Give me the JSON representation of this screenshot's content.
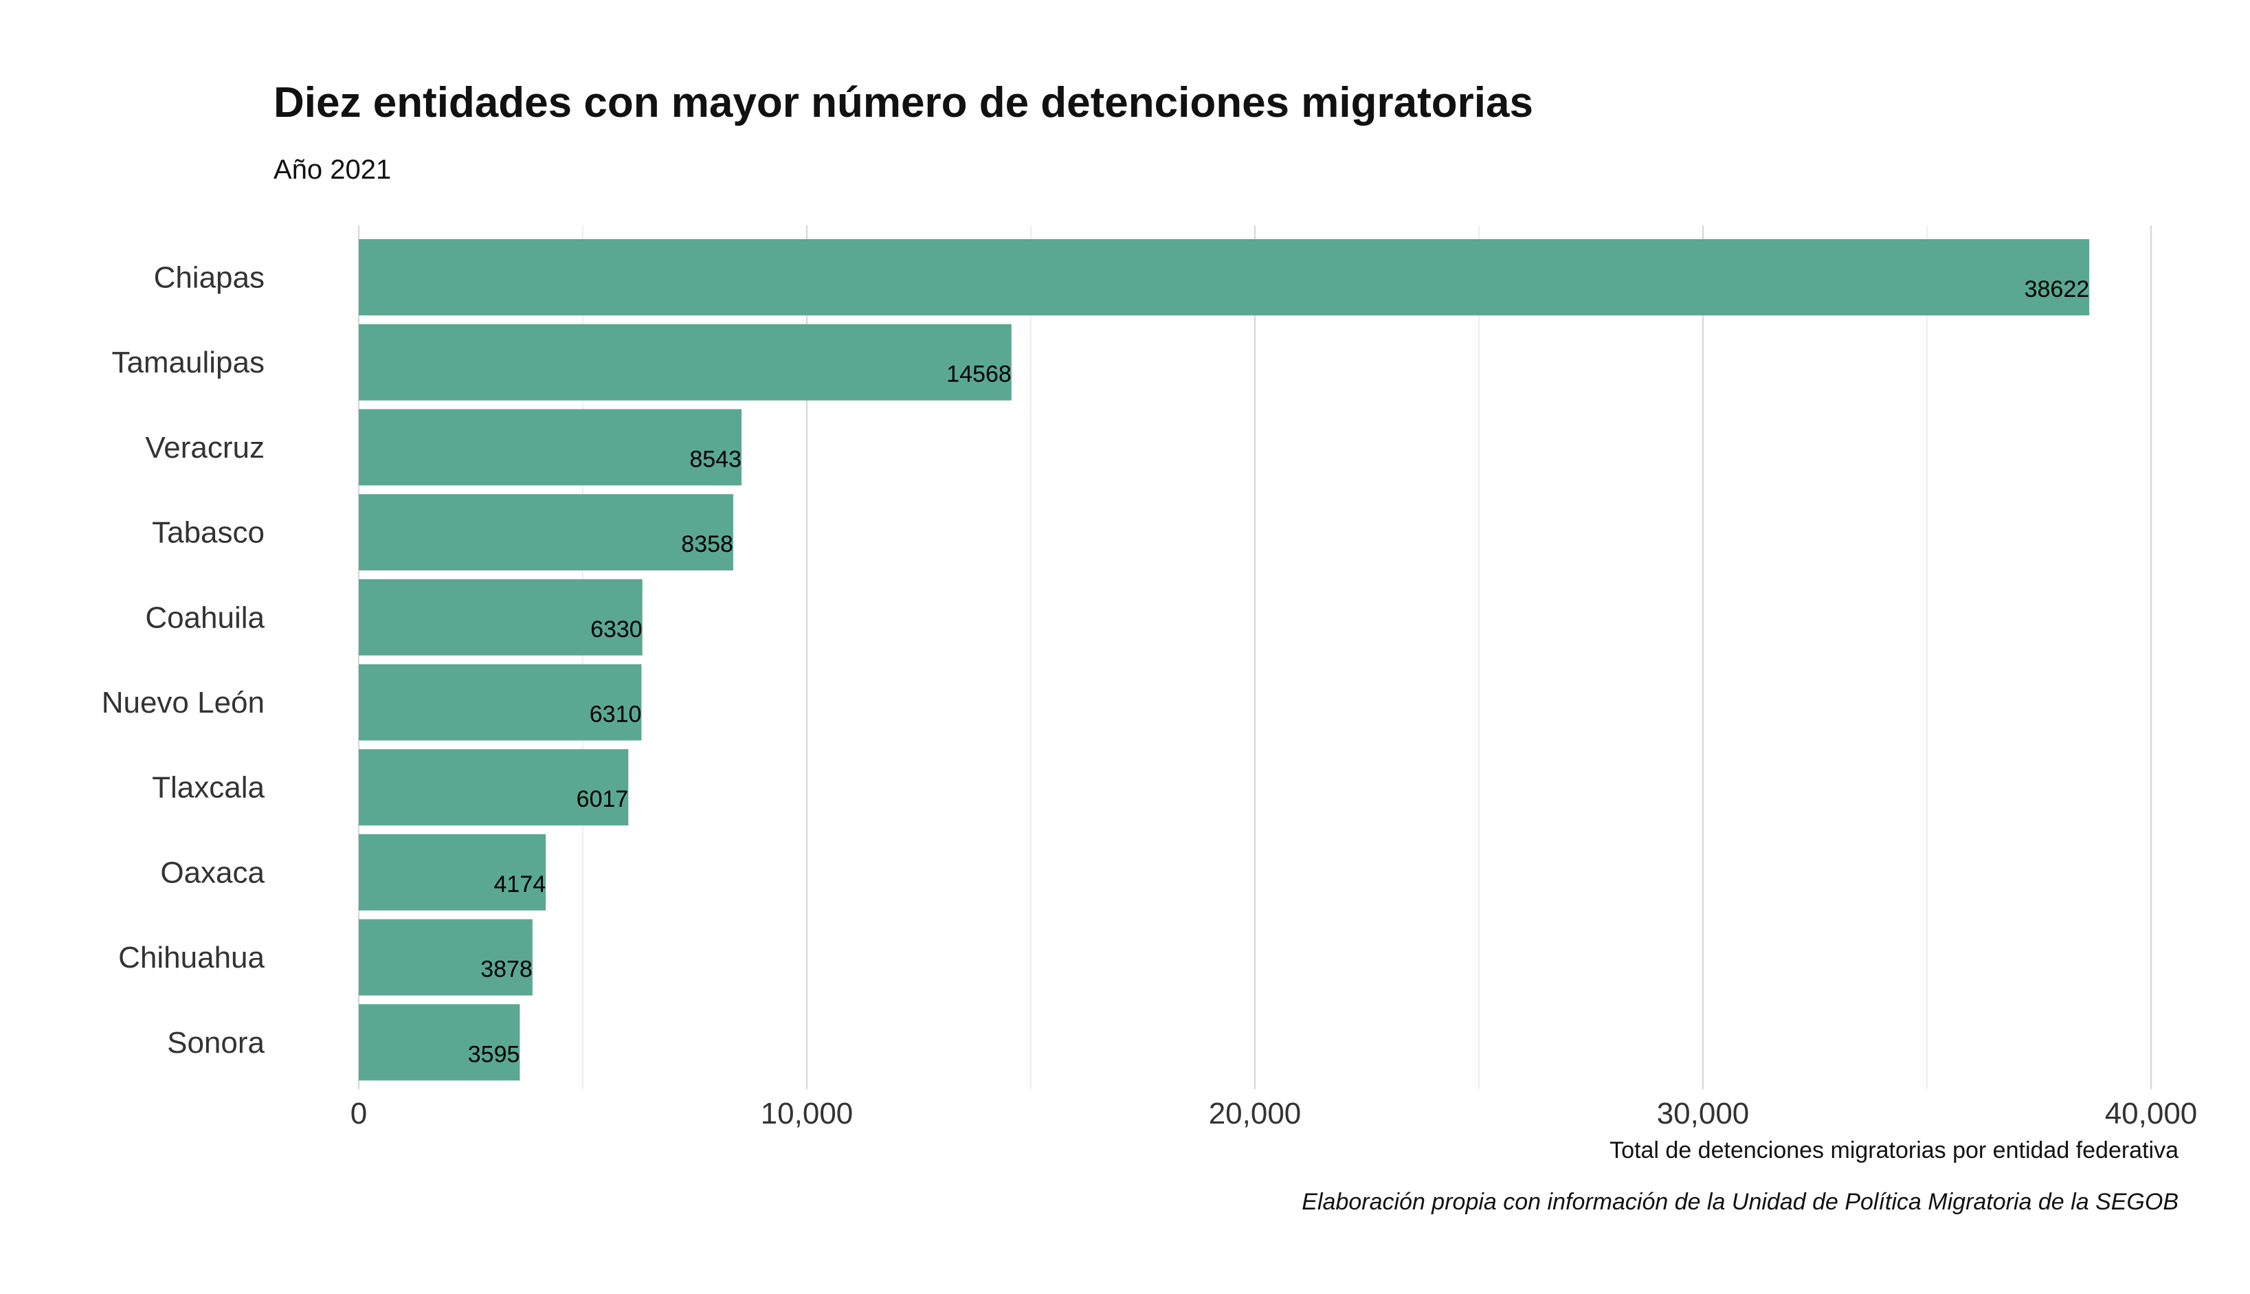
{
  "chart_data": {
    "type": "bar",
    "orientation": "horizontal",
    "title": "Diez entidades con mayor número de detenciones migratorias",
    "subtitle": "Año 2021",
    "xlabel": "Total de detenciones migratorias por entidad federativa",
    "ylabel": "",
    "caption": "Elaboración propia con información de la Unidad de Política Migratoria de la SEGOB",
    "categories": [
      "Chiapas",
      "Tamaulipas",
      "Veracruz",
      "Tabasco",
      "Coahuila",
      "Nuevo León",
      "Tlaxcala",
      "Oaxaca",
      "Chihuahua",
      "Sonora"
    ],
    "values": [
      38622,
      14568,
      8543,
      8358,
      6330,
      6310,
      6017,
      4174,
      3878,
      3595
    ],
    "value_labels": [
      "38622",
      "14568",
      "8543",
      "8358",
      "6330",
      "6310",
      "6017",
      "4174",
      "3878",
      "3595"
    ],
    "xlim": [
      0,
      40000
    ],
    "x_ticks": [
      0,
      10000,
      20000,
      30000,
      40000
    ],
    "x_tick_labels": [
      "0",
      "10,000",
      "20,000",
      "30,000",
      "40,000"
    ],
    "x_minor_ticks": [
      5000,
      15000,
      25000,
      35000
    ],
    "grid": "vertical",
    "legend": "none",
    "bar_color": "#5aa891"
  }
}
